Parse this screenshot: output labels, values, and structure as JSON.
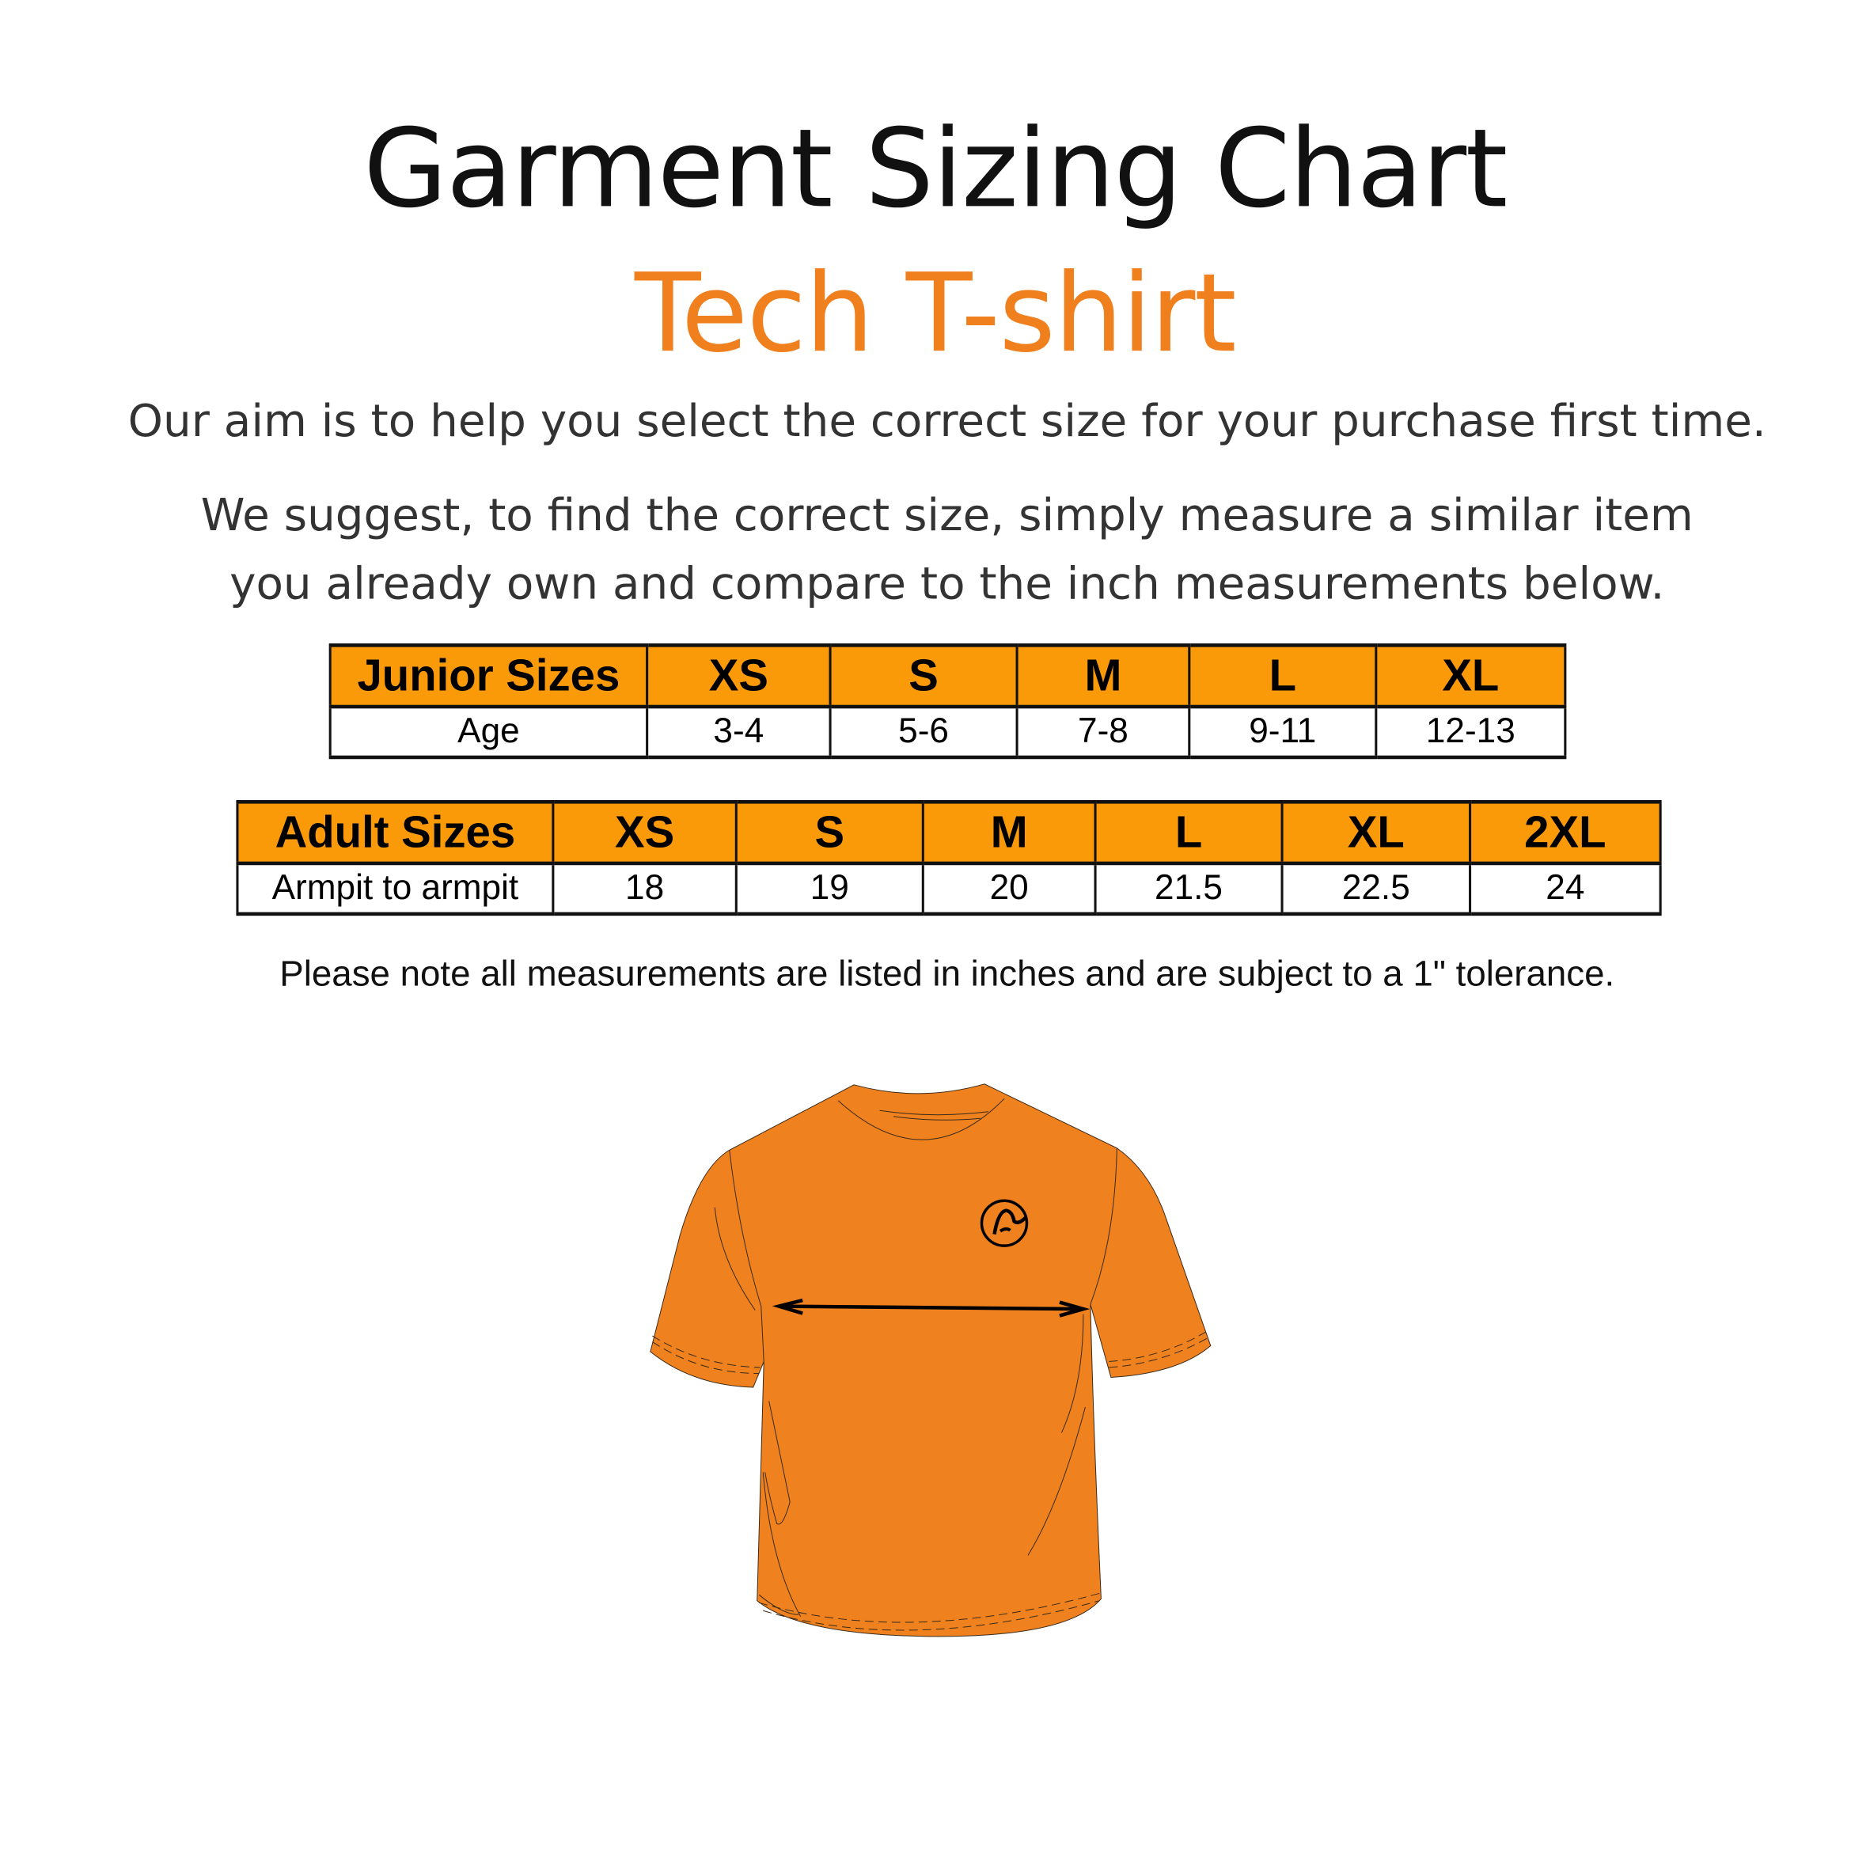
{
  "header": {
    "title": "Garment Sizing Chart",
    "subtitle": "Tech T-shirt"
  },
  "intro": {
    "line1": "Our aim is to help you select the correct size for your purchase first time.",
    "line2a": "We suggest, to find the correct size, simply measure a similar item",
    "line2b": "you already own and compare to the inch measurements below."
  },
  "junior_table": {
    "headers": [
      "Junior Sizes",
      "XS",
      "S",
      "M",
      "L",
      "XL"
    ],
    "row": [
      "Age",
      "3-4",
      "5-6",
      "7-8",
      "9-11",
      "12-13"
    ]
  },
  "adult_table": {
    "headers": [
      "Adult Sizes",
      "XS",
      "S",
      "M",
      "L",
      "XL",
      "2XL"
    ],
    "row": [
      "Armpit to armpit",
      "18",
      "19",
      "20",
      "21.5",
      "22.5",
      "24"
    ]
  },
  "note": "Please note all measurements are listed in inches and are subject to a 1\" tolerance.",
  "colors": {
    "accent": "#F07F1E",
    "table_header": "#FA9A08",
    "shirt": "#EF821E"
  },
  "illustration": {
    "icons": [
      "t-shirt-icon",
      "measurement-arrow-icon",
      "brand-logo-icon"
    ]
  }
}
